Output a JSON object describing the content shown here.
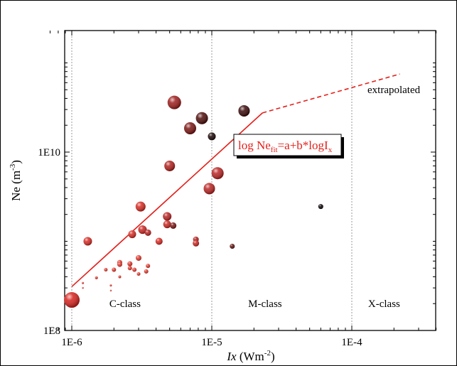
{
  "chart_data": {
    "type": "scatter",
    "title": "",
    "xlabel": "Ix (Wm-2)",
    "xlabel_parts": {
      "var": "Ix",
      "unit_open": " (Wm",
      "unit_exp": "-2",
      "unit_close": ")"
    },
    "ylabel": "Ne (m-3)",
    "ylabel_parts": {
      "var": "Ne (m",
      "exp": "-3",
      "close": ")"
    },
    "x_scale": "log",
    "y_scale": "log",
    "xlim": [
      7e-07,
      0.0004
    ],
    "ylim": [
      100000000.0,
      110000000000.0
    ],
    "x_ticks": [
      {
        "value": 1e-06,
        "label": "1E-6"
      },
      {
        "value": 1e-05,
        "label": "1E-5"
      },
      {
        "value": 0.0001,
        "label": "1E-4"
      }
    ],
    "y_ticks": [
      {
        "value": 100000000.0,
        "label": "1E8"
      },
      {
        "value": 10000000000.0,
        "label": "1E10"
      }
    ],
    "vertical_lines_at": [
      1e-06,
      1e-05,
      0.0001
    ],
    "region_labels": [
      {
        "text": "C-class",
        "x": 2.4e-06,
        "y": 200000000.0
      },
      {
        "text": "M-class",
        "x": 2.4e-05,
        "y": 200000000.0
      },
      {
        "text": "X-class",
        "x": 0.00017,
        "y": 200000000.0
      }
    ],
    "equation": {
      "pre": "log Ne",
      "sub_fit": "fit",
      "mid": "=a+b*logI",
      "sub_x": "x"
    },
    "extrapolated_label": "extrapolated",
    "fit_line": {
      "solid": [
        [
          1e-06,
          310000000.0
        ],
        [
          2.3e-05,
          27500000000.0
        ]
      ],
      "dashed": [
        [
          2.3e-05,
          27500000000.0
        ],
        [
          0.00022,
          75000000000.0
        ]
      ],
      "color": "#e3201b"
    },
    "points": [
      {
        "x": 1e-06,
        "y": 220000000.0,
        "s": 11,
        "c": "#d6201b"
      },
      {
        "x": 1.2e-06,
        "y": 340000000.0,
        "s": 1.5,
        "c": "#e33a2e"
      },
      {
        "x": 1.2e-06,
        "y": 300000000.0,
        "s": 1.2,
        "c": "#e33a2e"
      },
      {
        "x": 1.3e-06,
        "y": 1000000000.0,
        "s": 6,
        "c": "#d62a22"
      },
      {
        "x": 1.5e-06,
        "y": 390000000.0,
        "s": 2,
        "c": "#e33a2e"
      },
      {
        "x": 1.75e-06,
        "y": 480000000.0,
        "s": 2.5,
        "c": "#e33a2e"
      },
      {
        "x": 1.9e-06,
        "y": 320000000.0,
        "s": 1.5,
        "c": "#e33a2e"
      },
      {
        "x": 1.9e-06,
        "y": 280000000.0,
        "s": 1.2,
        "c": "#e33a2e"
      },
      {
        "x": 2e-06,
        "y": 480000000.0,
        "s": 3,
        "c": "#e33a2e"
      },
      {
        "x": 2.2e-06,
        "y": 580000000.0,
        "s": 3.5,
        "c": "#e33a2e"
      },
      {
        "x": 2.2e-06,
        "y": 550000000.0,
        "s": 3.5,
        "c": "#e33a2e"
      },
      {
        "x": 2.2e-06,
        "y": 400000000.0,
        "s": 2,
        "c": "#e33a2e"
      },
      {
        "x": 2.6e-06,
        "y": 560000000.0,
        "s": 3.5,
        "c": "#e33a2e"
      },
      {
        "x": 2.6e-06,
        "y": 500000000.0,
        "s": 3,
        "c": "#e33a2e"
      },
      {
        "x": 2.7e-06,
        "y": 1200000000.0,
        "s": 5.5,
        "c": "#d62a22"
      },
      {
        "x": 2.8e-06,
        "y": 480000000.0,
        "s": 3,
        "c": "#e33a2e"
      },
      {
        "x": 3e-06,
        "y": 650000000.0,
        "s": 4,
        "c": "#e33a2e"
      },
      {
        "x": 3e-06,
        "y": 430000000.0,
        "s": 2.5,
        "c": "#e33a2e"
      },
      {
        "x": 3.1e-06,
        "y": 2450000000.0,
        "s": 7,
        "c": "#d62a22"
      },
      {
        "x": 3.2e-06,
        "y": 1350000000.0,
        "s": 6,
        "c": "#c92520"
      },
      {
        "x": 3.4e-06,
        "y": 460000000.0,
        "s": 3,
        "c": "#e33a2e"
      },
      {
        "x": 3.5e-06,
        "y": 530000000.0,
        "s": 3,
        "c": "#e33a2e"
      },
      {
        "x": 3.5e-06,
        "y": 1250000000.0,
        "s": 4.5,
        "c": "#b82321"
      },
      {
        "x": 4.2e-06,
        "y": 1000000000.0,
        "s": 5,
        "c": "#d62a22"
      },
      {
        "x": 4.8e-06,
        "y": 1900000000.0,
        "s": 6,
        "c": "#b82321"
      },
      {
        "x": 4.8e-06,
        "y": 1550000000.0,
        "s": 5.5,
        "c": "#c92520"
      },
      {
        "x": 5e-06,
        "y": 7000000000.0,
        "s": 7.5,
        "c": "#b0201c"
      },
      {
        "x": 5.3e-06,
        "y": 1500000000.0,
        "s": 4.5,
        "c": "#7a1412"
      },
      {
        "x": 5.4e-06,
        "y": 36000000000.0,
        "s": 9.5,
        "c": "#9c1c1a"
      },
      {
        "x": 7e-06,
        "y": 18500000000.0,
        "s": 8.5,
        "c": "#7a1412"
      },
      {
        "x": 7.7e-06,
        "y": 1050000000.0,
        "s": 4,
        "c": "#b0201c"
      },
      {
        "x": 7.7e-06,
        "y": 950000000.0,
        "s": 4.5,
        "c": "#c92520"
      },
      {
        "x": 8.5e-06,
        "y": 24000000000.0,
        "s": 8.5,
        "c": "#4d0c0a"
      },
      {
        "x": 9.6e-06,
        "y": 3900000000.0,
        "s": 8,
        "c": "#b82321"
      },
      {
        "x": 1e-05,
        "y": 15000000000.0,
        "s": 5.5,
        "c": "#180505"
      },
      {
        "x": 1.1e-05,
        "y": 5800000000.0,
        "s": 8.5,
        "c": "#b82321"
      },
      {
        "x": 1.4e-05,
        "y": 880000000.0,
        "s": 3.5,
        "c": "#5e100e"
      },
      {
        "x": 1.7e-05,
        "y": 29000000000.0,
        "s": 8,
        "c": "#3a0808"
      },
      {
        "x": 6e-05,
        "y": 2450000000.0,
        "s": 3.5,
        "c": "#0a0202"
      }
    ]
  }
}
